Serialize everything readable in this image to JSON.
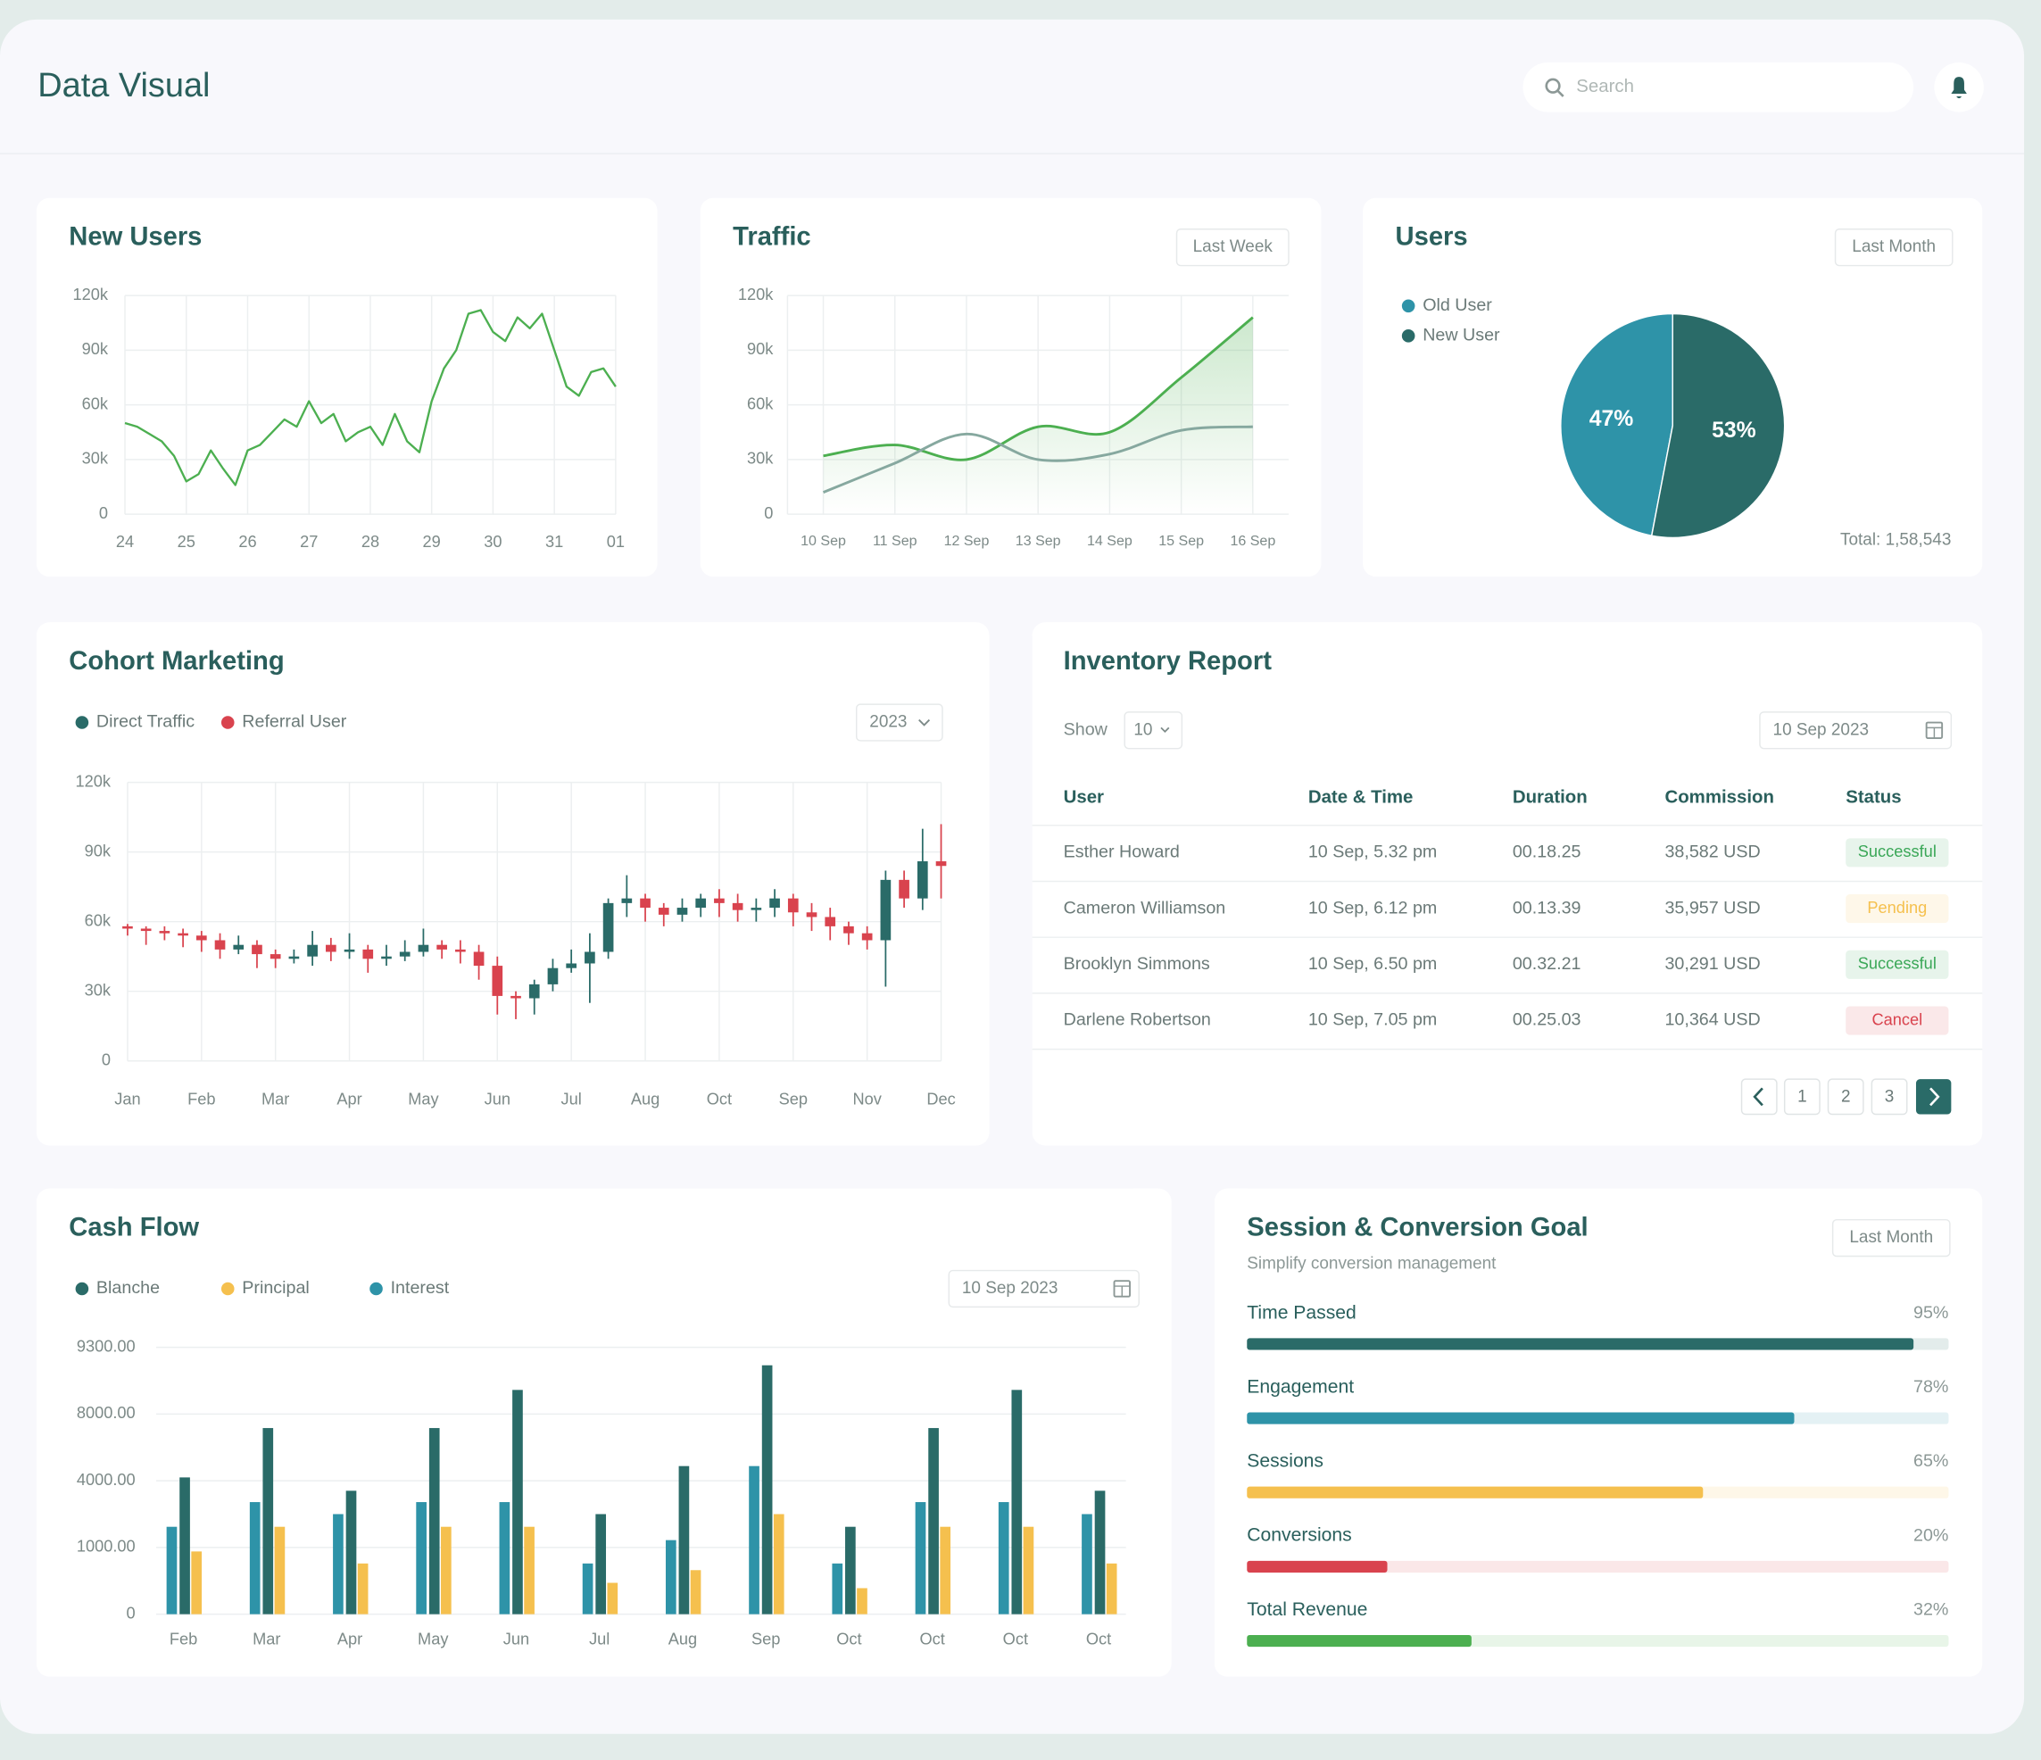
{
  "header": {
    "title": "Data Visual",
    "search_placeholder": "Search"
  },
  "chart_data": [
    {
      "type": "line",
      "title": "New Users",
      "categories": [
        "24",
        null,
        null,
        null,
        null,
        "25",
        null,
        null,
        null,
        null,
        "26",
        null,
        null,
        null,
        null,
        "27",
        null,
        null,
        null,
        null,
        "28",
        null,
        null,
        null,
        null,
        "29",
        null,
        null,
        null,
        null,
        "30",
        null,
        null,
        null,
        null,
        "31",
        null,
        null,
        null,
        null,
        "01"
      ],
      "series": [
        {
          "color": "#4caf50",
          "values": [
            50000,
            48000,
            44000,
            40000,
            32000,
            18000,
            22000,
            35000,
            25000,
            16000,
            35000,
            38000,
            45000,
            52000,
            48000,
            62000,
            50000,
            55000,
            40000,
            45000,
            48000,
            38000,
            55000,
            40000,
            34000,
            62000,
            80000,
            90000,
            110000,
            112000,
            100000,
            95000,
            108000,
            102000,
            110000,
            90000,
            70000,
            65000,
            78000,
            80000,
            70000
          ]
        }
      ],
      "ylim": [
        0,
        120000
      ],
      "yticks": [
        0,
        {
          "value": 30000,
          "label": "30k"
        },
        {
          "value": 60000,
          "label": "60k"
        },
        {
          "value": 90000,
          "label": "90k"
        },
        {
          "value": 120000,
          "label": "120k"
        }
      ],
      "grid": true,
      "smooth": false
    },
    {
      "type": "line",
      "title": "Traffic",
      "filter": "Last Week",
      "categories": [
        "10 Sep",
        "11 Sep",
        "12 Sep",
        "13 Sep",
        "14 Sep",
        "15 Sep",
        "16 Sep"
      ],
      "series": [
        {
          "color": "#4caf50",
          "area": true,
          "values": [
            32000,
            38000,
            30000,
            48000,
            45000,
            75000,
            108000
          ]
        },
        {
          "color": "#86a89f",
          "values": [
            12000,
            28000,
            44000,
            30000,
            33000,
            46000,
            48000
          ]
        }
      ],
      "ylim": [
        0,
        120000
      ],
      "yticks": [
        0,
        {
          "value": 30000,
          "label": "30k"
        },
        {
          "value": 60000,
          "label": "60k"
        },
        {
          "value": 90000,
          "label": "90k"
        },
        {
          "value": 120000,
          "label": "120k"
        }
      ],
      "grid": true,
      "smooth": true
    },
    {
      "type": "pie",
      "title": "Users",
      "filter": "Last Month",
      "categories": [
        "Old User",
        "New User"
      ],
      "values": [
        47,
        53
      ],
      "value_labels": [
        "47%",
        "53%"
      ],
      "colors": [
        "#2e93a8",
        "#2a6b68"
      ],
      "total_label": "Total: 1,58,543"
    },
    {
      "type": "candlestick",
      "title": "Cohort Marketing",
      "filter": "2023",
      "series": [
        {
          "name": "Direct Traffic",
          "color": "#2a6b68"
        },
        {
          "name": "Referral User",
          "color": "#d9434e"
        }
      ],
      "categories": [
        "Jan",
        null,
        null,
        null,
        "Feb",
        null,
        null,
        null,
        "Mar",
        null,
        null,
        null,
        "Apr",
        null,
        null,
        null,
        "May",
        null,
        null,
        null,
        "Jun",
        null,
        null,
        null,
        "Jul",
        null,
        null,
        null,
        "Aug",
        null,
        null,
        null,
        "Oct",
        null,
        null,
        null,
        "Sep",
        null,
        null,
        null,
        "Nov",
        null,
        null,
        null,
        "Dec"
      ],
      "open": [
        58000,
        57000,
        56000,
        55000,
        54000,
        52000,
        48000,
        50000,
        46000,
        44000,
        45000,
        50000,
        47000,
        48000,
        44000,
        45000,
        47000,
        50000,
        48000,
        47000,
        41000,
        28000,
        27000,
        33000,
        40000,
        42000,
        47000,
        68000,
        70000,
        66000,
        63000,
        66000,
        70000,
        68000,
        65000,
        66000,
        70000,
        64000,
        62000,
        58000,
        55000,
        52000,
        78000,
        70000,
        86000
      ],
      "high": [
        59000,
        58000,
        58000,
        57000,
        56000,
        55000,
        54000,
        52000,
        48000,
        48000,
        56000,
        53000,
        55000,
        50000,
        50000,
        52000,
        57000,
        52000,
        52000,
        50000,
        45000,
        30000,
        35000,
        44000,
        48000,
        55000,
        70000,
        80000,
        72000,
        68000,
        70000,
        72000,
        74000,
        72000,
        70000,
        74000,
        72000,
        68000,
        66000,
        60000,
        58000,
        82000,
        82000,
        100000,
        102000
      ],
      "low": [
        54000,
        50000,
        52000,
        49000,
        47000,
        44000,
        46000,
        40000,
        40000,
        42000,
        41000,
        43000,
        44000,
        38000,
        41000,
        43000,
        45000,
        44000,
        42000,
        35000,
        20000,
        18000,
        20000,
        30000,
        38000,
        25000,
        44000,
        62000,
        60000,
        58000,
        60000,
        62000,
        62000,
        60000,
        60000,
        62000,
        58000,
        56000,
        52000,
        50000,
        48000,
        32000,
        66000,
        65000,
        70000
      ],
      "close": [
        57000,
        56000,
        55000,
        54000,
        52000,
        48000,
        50000,
        46000,
        44000,
        45000,
        50000,
        47000,
        48000,
        44000,
        45000,
        47000,
        50000,
        48000,
        47000,
        41000,
        28000,
        27000,
        33000,
        40000,
        42000,
        47000,
        68000,
        70000,
        66000,
        63000,
        66000,
        70000,
        68000,
        65000,
        66000,
        70000,
        64000,
        62000,
        58000,
        55000,
        52000,
        78000,
        70000,
        86000,
        84000
      ],
      "ylim": [
        0,
        120000
      ],
      "yticks": [
        0,
        {
          "value": 30000,
          "label": "30k"
        },
        {
          "value": 60000,
          "label": "60k"
        },
        {
          "value": 90000,
          "label": "90k"
        },
        {
          "value": 120000,
          "label": "120k"
        }
      ],
      "grid": true
    },
    {
      "type": "bar",
      "title": "Cash Flow",
      "date": "10 Sep 2023",
      "categories": [
        "Feb",
        "Mar",
        "Apr",
        "May",
        "Jun",
        "Jul",
        "Aug",
        "Sep",
        "Oct",
        "Oct",
        "Oct",
        "Oct"
      ],
      "series": [
        {
          "name": "Blanche",
          "color": "#2a6b68",
          "values": [
            4200,
            7160,
            3550,
            7160,
            8470,
            2500,
            4880,
            8950,
            1930,
            7160,
            8470,
            3550
          ]
        },
        {
          "name": "Principal",
          "color": "#f5c04e",
          "values": [
            940,
            1930,
            760,
            1930,
            1930,
            470,
            660,
            2500,
            390,
            1930,
            1930,
            760
          ]
        },
        {
          "name": "Interest",
          "color": "#2e93a8",
          "values": [
            1930,
            3040,
            2500,
            3040,
            3040,
            760,
            1330,
            4880,
            760,
            3040,
            3040,
            2500
          ]
        }
      ],
      "ylim": [
        0,
        9300
      ],
      "yticks": [
        0,
        {
          "value": 1000,
          "label": "1000.00"
        },
        {
          "value": 4000,
          "label": "4000.00"
        },
        {
          "value": 8000,
          "label": "8000.00"
        },
        {
          "value": 9300,
          "label": "9300.00"
        }
      ],
      "grid": true
    },
    {
      "type": "progress",
      "title": "Session & Conversion Goal",
      "subtitle": "Simplify conversion management",
      "filter": "Last Month",
      "categories": [
        "Time Passed",
        "Engagement",
        "Sessions",
        "Conversions",
        "Total Revenue"
      ],
      "values": [
        95,
        78,
        65,
        20,
        32
      ],
      "value_labels": [
        "95%",
        "78%",
        "65%",
        "20%",
        "32%"
      ],
      "colors": [
        "#2a6b68",
        "#2e93a8",
        "#f5c04e",
        "#d9434e",
        "#4caf50"
      ],
      "xlim": [
        0,
        100
      ]
    }
  ],
  "inventory": {
    "title": "Inventory Report",
    "show_label": "Show",
    "page_size": "10",
    "date": "10 Sep 2023",
    "columns": [
      "User",
      "Date & Time",
      "Duration",
      "Commission",
      "Status"
    ],
    "rows": [
      [
        "Esther Howard",
        "10 Sep, 5.32 pm",
        "00.18.25",
        "38,582 USD",
        "Successful"
      ],
      [
        "Cameron Williamson",
        "10 Sep, 6.12 pm",
        "00.13.39",
        "35,957 USD",
        "Pending"
      ],
      [
        "Brooklyn Simmons",
        "10 Sep, 6.50 pm",
        "00.32.21",
        "30,291 USD",
        "Successful"
      ],
      [
        "Darlene Robertson",
        "10 Sep, 7.05 pm",
        "00.25.03",
        "10,364 USD",
        "Cancel"
      ]
    ],
    "status_colors": [
      "#3aa757",
      "#f5c04e",
      "#3aa757",
      "#d9434e"
    ],
    "pages": [
      "1",
      "2",
      "3"
    ]
  }
}
